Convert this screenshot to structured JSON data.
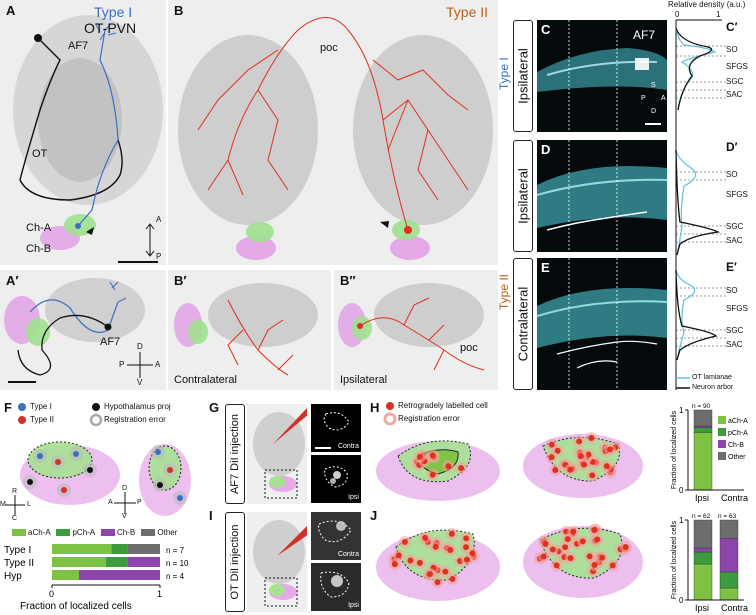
{
  "panels": {
    "A": {
      "letter": "A",
      "title_type": "Type I",
      "title_cell": "OT-PVN",
      "labels": {
        "af7": "AF7",
        "ot": "OT",
        "cha": "Ch-A",
        "chb": "Ch-B"
      },
      "compass": {
        "a": "A",
        "p": "P"
      }
    },
    "A2": {
      "letter": "A′",
      "labels": {
        "af7": "AF7"
      },
      "compass": {
        "d": "D",
        "v": "V",
        "p": "P",
        "a": "A"
      }
    },
    "B": {
      "letter": "B",
      "title": "Type II",
      "labels": {
        "poc": "poc"
      }
    },
    "B2": {
      "letter": "B′",
      "label": "Contralateral"
    },
    "B3": {
      "letter": "B″",
      "label": "Ipsilateral",
      "poc": "poc"
    },
    "C": {
      "letter": "C",
      "tab": "Ipsilateral",
      "af7": "AF7",
      "compass": {
        "s": "S",
        "d": "D",
        "p": "P",
        "a": "A"
      }
    },
    "C2": {
      "letter": "C′",
      "axis_title": "Relative density (a.u.)",
      "tick0": "0",
      "tick1": "1",
      "layers": [
        "SO",
        "SFGS",
        "SGC",
        "SAC"
      ]
    },
    "D": {
      "letter": "D",
      "tab": "Ipsilateral"
    },
    "D2": {
      "letter": "D′",
      "layers": [
        "SO",
        "SFGS",
        "SGC",
        "SAC"
      ]
    },
    "E": {
      "letter": "E",
      "tab": "Contralateral"
    },
    "E2": {
      "letter": "E′",
      "layers": [
        "SO",
        "SFGS",
        "SGC",
        "SAC"
      ],
      "legend": [
        "OT lamianae",
        "Neuron arbor"
      ]
    },
    "typeI_side": "Type I",
    "typeII_side": "Type II",
    "F": {
      "letter": "F",
      "legend": [
        "Type I",
        "Type II",
        "Hypothalamus proj",
        "Registration error"
      ],
      "compass1": {
        "r": "R",
        "m": "M",
        "l": "L",
        "c": "C"
      },
      "compass2": {
        "d": "D",
        "a": "A",
        "p": "P",
        "v": "V"
      }
    },
    "G": {
      "letter": "G",
      "tab": "AF7 DiI injection",
      "inset1": "Contra",
      "inset2": "Ipsi"
    },
    "H": {
      "letter": "H",
      "legend": [
        "Retrogradely labelled cell",
        "Registration error"
      ]
    },
    "I": {
      "letter": "I",
      "tab": "OT DiI injection",
      "inset1": "Contra",
      "inset2": "Ipsi"
    },
    "J": {
      "letter": "J"
    }
  },
  "colors": {
    "typeI": "#3a6fc4",
    "typeII": "#c0392b",
    "cha": "#7dc242",
    "pcha": "#3d9a3d",
    "chb": "#8e44ad",
    "other": "#6d6d6d",
    "cyan": "#5fd0e0"
  },
  "chart_data": [
    {
      "type": "bar",
      "orientation": "horizontal-stacked",
      "categories": [
        "Type I",
        "Type II",
        "Hyp"
      ],
      "n_labels": [
        "n = 7",
        "n = 10",
        "n = 4"
      ],
      "series": [
        {
          "name": "aCh-A",
          "values": [
            0.55,
            0.5,
            0.25
          ]
        },
        {
          "name": "pCh-A",
          "values": [
            0.15,
            0.2,
            0.0
          ]
        },
        {
          "name": "Ch-B",
          "values": [
            0.0,
            0.3,
            0.75
          ]
        },
        {
          "name": "Other",
          "values": [
            0.3,
            0.0,
            0.0
          ]
        }
      ],
      "xlabel": "Fraction of localized cells",
      "xlim": [
        0,
        1
      ],
      "xticks": [
        "0",
        "1"
      ]
    },
    {
      "type": "bar",
      "orientation": "vertical-stacked",
      "categories": [
        "Ipsi",
        "Contra"
      ],
      "n_labels": [
        "n = 90",
        ""
      ],
      "series": [
        {
          "name": "aCh-A",
          "values": [
            0.72,
            0.0
          ]
        },
        {
          "name": "pCh-A",
          "values": [
            0.06,
            0.0
          ]
        },
        {
          "name": "Ch-B",
          "values": [
            0.02,
            0.0
          ]
        },
        {
          "name": "Other",
          "values": [
            0.2,
            0.0
          ]
        }
      ],
      "ylabel": "Fraction of localized cells",
      "ylim": [
        0,
        1
      ],
      "yticks": [
        "0",
        "1"
      ],
      "legend": [
        "aCh-A",
        "pCh-A",
        "Ch-B",
        "Other"
      ]
    },
    {
      "type": "bar",
      "orientation": "vertical-stacked",
      "categories": [
        "Ipsi",
        "Contra"
      ],
      "n_labels": [
        "n = 62",
        "n = 63"
      ],
      "series": [
        {
          "name": "aCh-A",
          "values": [
            0.45,
            0.15
          ]
        },
        {
          "name": "pCh-A",
          "values": [
            0.15,
            0.2
          ]
        },
        {
          "name": "Ch-B",
          "values": [
            0.05,
            0.42
          ]
        },
        {
          "name": "Other",
          "values": [
            0.35,
            0.23
          ]
        }
      ],
      "ylabel": "Fraction of localized cells",
      "ylim": [
        0,
        1
      ],
      "yticks": [
        "0",
        "1"
      ]
    }
  ]
}
